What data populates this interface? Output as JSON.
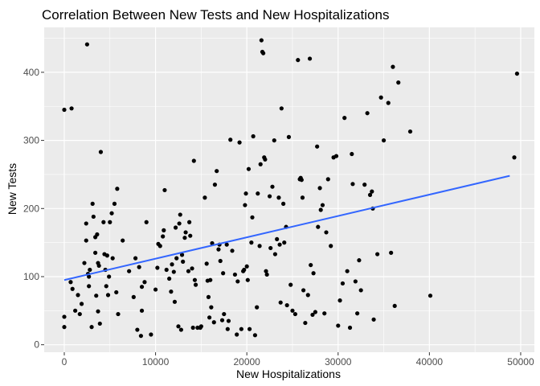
{
  "chart_data": {
    "type": "scatter",
    "title": "Correlation Between New Tests and New Hospitalizations",
    "xlabel": "New Hospitalizations",
    "ylabel": "New Tests",
    "xlim": [
      -2200,
      51500
    ],
    "ylim": [
      -11,
      466
    ],
    "xticks": [
      0,
      10000,
      20000,
      30000,
      40000,
      50000
    ],
    "xtick_labels": [
      "0",
      "10000",
      "20000",
      "30000",
      "40000",
      "50000"
    ],
    "yticks": [
      0,
      100,
      200,
      300,
      400
    ],
    "ytick_labels": [
      "0",
      "100",
      "200",
      "300",
      "400"
    ],
    "grid": true,
    "background": "#ebebeb",
    "grid_major_color": "#ffffff",
    "point_color": "#000000",
    "trend_color": "#3366ff",
    "trend_line": {
      "x": [
        0,
        48800
      ],
      "y": [
        95,
        248
      ]
    },
    "points": [
      [
        0,
        345
      ],
      [
        800,
        347
      ],
      [
        0,
        41
      ],
      [
        0,
        26
      ],
      [
        700,
        92
      ],
      [
        900,
        82
      ],
      [
        1200,
        50
      ],
      [
        1500,
        73
      ],
      [
        1700,
        45
      ],
      [
        1900,
        60
      ],
      [
        2200,
        120
      ],
      [
        2400,
        178
      ],
      [
        2400,
        153
      ],
      [
        2500,
        441
      ],
      [
        2600,
        104
      ],
      [
        2700,
        100
      ],
      [
        2700,
        86
      ],
      [
        2800,
        110
      ],
      [
        3000,
        26
      ],
      [
        3100,
        207
      ],
      [
        3200,
        188
      ],
      [
        3400,
        158
      ],
      [
        3400,
        135
      ],
      [
        3500,
        72
      ],
      [
        3600,
        162
      ],
      [
        3700,
        49
      ],
      [
        3700,
        120
      ],
      [
        3800,
        116
      ],
      [
        3900,
        31
      ],
      [
        4000,
        283
      ],
      [
        4300,
        180
      ],
      [
        4400,
        133
      ],
      [
        4500,
        110
      ],
      [
        4600,
        86
      ],
      [
        4700,
        131
      ],
      [
        4800,
        73
      ],
      [
        4900,
        100
      ],
      [
        5000,
        180
      ],
      [
        5200,
        193
      ],
      [
        5300,
        127
      ],
      [
        5500,
        207
      ],
      [
        5700,
        77
      ],
      [
        5800,
        229
      ],
      [
        5900,
        45
      ],
      [
        6400,
        153
      ],
      [
        7100,
        108
      ],
      [
        7600,
        70
      ],
      [
        7800,
        127
      ],
      [
        8000,
        22
      ],
      [
        8200,
        114
      ],
      [
        8500,
        85
      ],
      [
        8400,
        13
      ],
      [
        8500,
        50
      ],
      [
        8800,
        92
      ],
      [
        9000,
        180
      ],
      [
        9500,
        15
      ],
      [
        10000,
        81
      ],
      [
        10200,
        113
      ],
      [
        10300,
        148
      ],
      [
        10500,
        145
      ],
      [
        10800,
        159
      ],
      [
        10900,
        168
      ],
      [
        11000,
        227
      ],
      [
        11200,
        110
      ],
      [
        11500,
        97
      ],
      [
        11700,
        78
      ],
      [
        11800,
        118
      ],
      [
        12000,
        107
      ],
      [
        12100,
        63
      ],
      [
        12200,
        172
      ],
      [
        12300,
        127
      ],
      [
        12500,
        27
      ],
      [
        12600,
        178
      ],
      [
        12700,
        191
      ],
      [
        12800,
        22
      ],
      [
        12900,
        132
      ],
      [
        13000,
        122
      ],
      [
        13200,
        157
      ],
      [
        13300,
        165
      ],
      [
        13600,
        108
      ],
      [
        13700,
        180
      ],
      [
        13800,
        160
      ],
      [
        14000,
        112
      ],
      [
        14100,
        25
      ],
      [
        14200,
        270
      ],
      [
        14300,
        95
      ],
      [
        14400,
        88
      ],
      [
        14600,
        25
      ],
      [
        14900,
        25
      ],
      [
        15000,
        27
      ],
      [
        15400,
        216
      ],
      [
        15600,
        119
      ],
      [
        15700,
        94
      ],
      [
        15800,
        70
      ],
      [
        15900,
        40
      ],
      [
        16000,
        95
      ],
      [
        16100,
        55
      ],
      [
        16200,
        149
      ],
      [
        16400,
        33
      ],
      [
        16500,
        235
      ],
      [
        16700,
        255
      ],
      [
        16900,
        140
      ],
      [
        17000,
        147
      ],
      [
        17100,
        123
      ],
      [
        17300,
        36
      ],
      [
        17400,
        105
      ],
      [
        17500,
        45
      ],
      [
        17800,
        147
      ],
      [
        17900,
        23
      ],
      [
        18000,
        35
      ],
      [
        18200,
        301
      ],
      [
        18400,
        138
      ],
      [
        18700,
        103
      ],
      [
        18900,
        15
      ],
      [
        19000,
        93
      ],
      [
        19200,
        297
      ],
      [
        19400,
        23
      ],
      [
        19600,
        108
      ],
      [
        19700,
        110
      ],
      [
        19800,
        205
      ],
      [
        19900,
        222
      ],
      [
        20000,
        115
      ],
      [
        20100,
        95
      ],
      [
        20200,
        258
      ],
      [
        20300,
        23
      ],
      [
        20500,
        150
      ],
      [
        20600,
        187
      ],
      [
        20700,
        306
      ],
      [
        20900,
        14
      ],
      [
        21100,
        55
      ],
      [
        21200,
        222
      ],
      [
        21400,
        145
      ],
      [
        21500,
        265
      ],
      [
        21600,
        447
      ],
      [
        21700,
        430
      ],
      [
        21800,
        428
      ],
      [
        21900,
        275
      ],
      [
        22000,
        272
      ],
      [
        22100,
        108
      ],
      [
        22200,
        103
      ],
      [
        22500,
        218
      ],
      [
        22600,
        142
      ],
      [
        22800,
        232
      ],
      [
        23000,
        300
      ],
      [
        23100,
        133
      ],
      [
        23300,
        155
      ],
      [
        23500,
        216
      ],
      [
        23600,
        147
      ],
      [
        23700,
        62
      ],
      [
        23800,
        347
      ],
      [
        24000,
        207
      ],
      [
        24100,
        150
      ],
      [
        24300,
        173
      ],
      [
        24400,
        58
      ],
      [
        24600,
        305
      ],
      [
        24800,
        88
      ],
      [
        25000,
        50
      ],
      [
        25300,
        45
      ],
      [
        25600,
        418
      ],
      [
        25800,
        243
      ],
      [
        25900,
        245
      ],
      [
        26000,
        242
      ],
      [
        26100,
        216
      ],
      [
        26200,
        80
      ],
      [
        26400,
        32
      ],
      [
        26700,
        73
      ],
      [
        26900,
        420
      ],
      [
        27000,
        117
      ],
      [
        27200,
        44
      ],
      [
        27300,
        105
      ],
      [
        27500,
        48
      ],
      [
        27700,
        291
      ],
      [
        27800,
        173
      ],
      [
        28000,
        230
      ],
      [
        28100,
        198
      ],
      [
        28300,
        205
      ],
      [
        28500,
        46
      ],
      [
        28700,
        165
      ],
      [
        28900,
        243
      ],
      [
        29200,
        145
      ],
      [
        29500,
        275
      ],
      [
        29800,
        277
      ],
      [
        30000,
        28
      ],
      [
        30200,
        65
      ],
      [
        30500,
        90
      ],
      [
        30700,
        333
      ],
      [
        31000,
        108
      ],
      [
        31300,
        25
      ],
      [
        31500,
        280
      ],
      [
        31600,
        236
      ],
      [
        31900,
        93
      ],
      [
        32100,
        46
      ],
      [
        32300,
        124
      ],
      [
        32500,
        80
      ],
      [
        32900,
        235
      ],
      [
        33200,
        340
      ],
      [
        33500,
        220
      ],
      [
        33700,
        225
      ],
      [
        33800,
        200
      ],
      [
        33900,
        37
      ],
      [
        34300,
        133
      ],
      [
        34700,
        363
      ],
      [
        35000,
        300
      ],
      [
        35500,
        355
      ],
      [
        35800,
        135
      ],
      [
        36000,
        408
      ],
      [
        36200,
        57
      ],
      [
        36600,
        385
      ],
      [
        37900,
        313
      ],
      [
        40100,
        72
      ],
      [
        49300,
        275
      ],
      [
        49600,
        398
      ]
    ]
  }
}
